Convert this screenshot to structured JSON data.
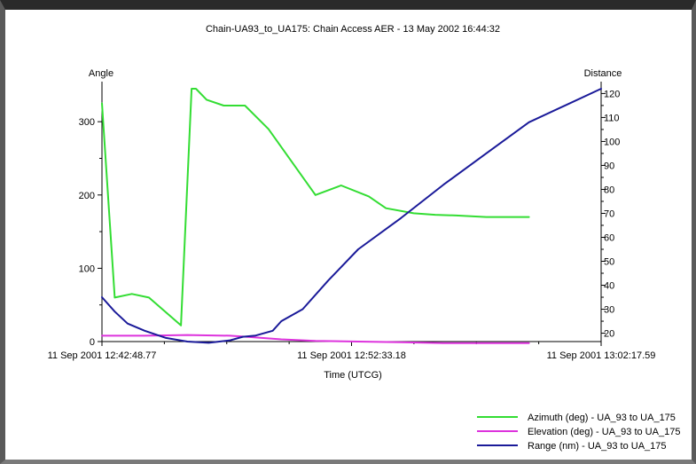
{
  "chart_data": {
    "type": "line",
    "title": "Chain-UA93_to_UA175:  Chain Access AER - 13 May 2002 16:44:32",
    "xlabel": "Time (UTCG)",
    "ylabel_left": "Angle",
    "ylabel_right": "Distance",
    "x_ticks": [
      "11 Sep 2001 12:42:48.77",
      "11 Sep 2001 12:52:33.18",
      "11 Sep 2001 13:02:17.59"
    ],
    "x_range_seconds": [
      0,
      1169
    ],
    "x": [
      0,
      60,
      120,
      180,
      240,
      270,
      340,
      380,
      440,
      490,
      550,
      600,
      660,
      700,
      750,
      800,
      850,
      900,
      950,
      1000,
      1050,
      1100,
      1169
    ],
    "y_left_ticks": [
      0,
      100,
      200,
      300
    ],
    "y_left_range": [
      0,
      345
    ],
    "y_right_ticks": [
      20,
      30,
      40,
      50,
      60,
      70,
      80,
      90,
      100,
      110,
      120
    ],
    "y_right_range": [
      16.5,
      122
    ],
    "legend_position": "bottom-right",
    "series": [
      {
        "name": "Azimuth (deg) - UA_93 to UA_175",
        "axis": "left",
        "color": "#33dd33",
        "x": [
          0,
          30,
          70,
          110,
          185,
          210,
          220,
          245,
          285,
          335,
          390,
          500,
          560,
          625,
          665,
          730,
          780,
          830,
          900,
          960,
          1000
        ],
        "values": [
          325,
          60,
          65,
          60,
          22,
          345,
          345,
          330,
          322,
          322,
          290,
          200,
          213,
          198,
          182,
          175,
          173,
          172,
          170,
          170,
          170
        ]
      },
      {
        "name": "Elevation (deg) - UA_93 to UA_175",
        "axis": "left",
        "color": "#dd33dd",
        "x": [
          0,
          100,
          200,
          300,
          350,
          420,
          500,
          600,
          700,
          800,
          900,
          1000
        ],
        "values": [
          8,
          8,
          9,
          8,
          6,
          3,
          1,
          0,
          -1,
          -2,
          -2,
          -2
        ]
      },
      {
        "name": "Range (nm) - UA_93 to UA_175",
        "axis": "right",
        "color": "#1a1a99",
        "x": [
          0,
          30,
          60,
          100,
          150,
          200,
          250,
          300,
          330,
          360,
          400,
          420,
          470,
          530,
          600,
          700,
          800,
          900,
          1000,
          1169
        ],
        "values": [
          35,
          29,
          24,
          21,
          18,
          16.5,
          16,
          17,
          18.5,
          19,
          21,
          25,
          30,
          42,
          55,
          68,
          82,
          95,
          108,
          122
        ]
      }
    ]
  }
}
